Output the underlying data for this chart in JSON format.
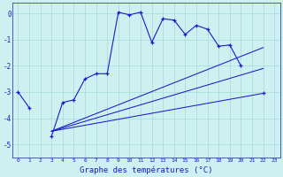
{
  "xlabel": "Graphe des températures (°C)",
  "background_color": "#cff0f0",
  "grid_color": "#aadddd",
  "line_color": "#1a1acc",
  "hours": [
    0,
    1,
    2,
    3,
    4,
    5,
    6,
    7,
    8,
    9,
    10,
    11,
    12,
    13,
    14,
    15,
    16,
    17,
    18,
    19,
    20,
    21,
    22,
    23
  ],
  "temp_actual": [
    -3.0,
    -3.6,
    null,
    -4.7,
    -3.4,
    -3.3,
    -2.5,
    -2.3,
    -2.3,
    0.05,
    -0.05,
    0.05,
    -1.1,
    -0.2,
    -0.25,
    -0.8,
    -0.45,
    -0.6,
    -1.25,
    -1.2,
    -2.0,
    null,
    -3.05,
    null
  ],
  "line1_x": [
    3,
    22
  ],
  "line1_y": [
    -4.5,
    -3.05
  ],
  "line2_x": [
    3,
    22
  ],
  "line2_y": [
    -4.5,
    -2.1
  ],
  "line3_x": [
    3,
    22
  ],
  "line3_y": [
    -4.5,
    -1.3
  ],
  "ylim": [
    -5.5,
    0.4
  ],
  "yticks": [
    0,
    -1,
    -2,
    -3,
    -4,
    -5
  ],
  "xlim": [
    -0.5,
    23.5
  ]
}
